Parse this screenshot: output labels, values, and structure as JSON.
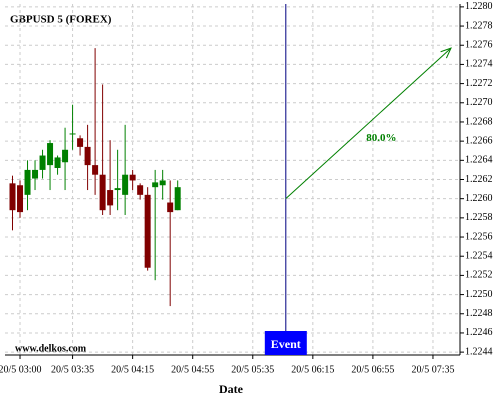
{
  "chart_data": {
    "type": "candlestick",
    "title": "GBPUSD 5 (FOREX)",
    "x_label": "Date",
    "watermark": "www.delkos.com",
    "x": [
      -5,
      0,
      5,
      10,
      15,
      20,
      25,
      30,
      35,
      40,
      45,
      50,
      55,
      60,
      65,
      70,
      75,
      80,
      85,
      90,
      95,
      100,
      105
    ],
    "open": [
      1.22616,
      1.22614,
      1.22604,
      1.22621,
      1.2263,
      1.22635,
      1.22632,
      1.22638,
      1.22667,
      1.22663,
      1.22654,
      1.22635,
      1.22625,
      1.22609,
      1.22609,
      1.22604,
      1.22625,
      1.22614,
      1.22604,
      1.22612,
      1.22614,
      1.22596,
      1.22588
    ],
    "high": [
      1.22624,
      1.22619,
      1.2264,
      1.2264,
      1.22651,
      1.22661,
      1.22645,
      1.22674,
      1.22698,
      1.22666,
      1.22677,
      1.22757,
      1.22719,
      1.22661,
      1.22651,
      1.22677,
      1.2263,
      1.22616,
      1.22612,
      1.2263,
      1.2263,
      1.22619,
      1.22619
    ],
    "low": [
      1.22567,
      1.2258,
      1.22588,
      1.22609,
      1.22621,
      1.22609,
      1.22625,
      1.22609,
      1.22651,
      1.22645,
      1.22609,
      1.22604,
      1.22583,
      1.22583,
      1.22588,
      1.22583,
      1.22609,
      1.22599,
      1.22525,
      1.22515,
      1.22599,
      1.22488,
      1.22588
    ],
    "close": [
      1.22588,
      1.22586,
      1.2263,
      1.2263,
      1.22645,
      1.22658,
      1.22643,
      1.22651,
      1.22668,
      1.22654,
      1.22635,
      1.22625,
      1.22588,
      1.22593,
      1.22611,
      1.22625,
      1.22619,
      1.22604,
      1.22528,
      1.22617,
      1.22619,
      1.22586,
      1.22612
    ],
    "up_color": "#008000",
    "down_color": "#800000",
    "xlim": [
      -10,
      293
    ],
    "ylim": [
      1.22437,
      1.22803
    ],
    "xticks": [
      {
        "value": 0,
        "label": "20/5 03:00"
      },
      {
        "value": 35,
        "label": "20/5 03:35"
      },
      {
        "value": 75,
        "label": "20/5 04:15"
      },
      {
        "value": 115,
        "label": "20/5 04:55"
      },
      {
        "value": 155,
        "label": "20/5 05:35"
      },
      {
        "value": 195,
        "label": "20/5 06:15"
      },
      {
        "value": 235,
        "label": "20/5 06:55"
      },
      {
        "value": 275,
        "label": "20/5 07:35"
      }
    ],
    "yticks": [
      {
        "value": 1.2244,
        "label": "1.2244"
      },
      {
        "value": 1.2246,
        "label": "1.2246"
      },
      {
        "value": 1.2248,
        "label": "1.2248"
      },
      {
        "value": 1.225,
        "label": "1.2250"
      },
      {
        "value": 1.2252,
        "label": "1.2252"
      },
      {
        "value": 1.2254,
        "label": "1.2254"
      },
      {
        "value": 1.2256,
        "label": "1.2256"
      },
      {
        "value": 1.2258,
        "label": "1.2258"
      },
      {
        "value": 1.226,
        "label": "1.2260"
      },
      {
        "value": 1.2262,
        "label": "1.2262"
      },
      {
        "value": 1.2264,
        "label": "1.2264"
      },
      {
        "value": 1.2266,
        "label": "1.2266"
      },
      {
        "value": 1.2268,
        "label": "1.2268"
      },
      {
        "value": 1.227,
        "label": "1.2270"
      },
      {
        "value": 1.2272,
        "label": "1.2272"
      },
      {
        "value": 1.2274,
        "label": "1.2274"
      },
      {
        "value": 1.2276,
        "label": "1.2276"
      },
      {
        "value": 1.2278,
        "label": "1.2278"
      },
      {
        "value": 1.228,
        "label": "1.2280"
      }
    ],
    "grid": true,
    "event": {
      "x": 177,
      "label": "Event",
      "color": "#000080",
      "box_color": "#0000ff"
    },
    "arrow": {
      "x": [
        177,
        287
      ],
      "y": [
        1.226,
        1.22757
      ],
      "label": "80.0%",
      "color": "#008000"
    }
  }
}
